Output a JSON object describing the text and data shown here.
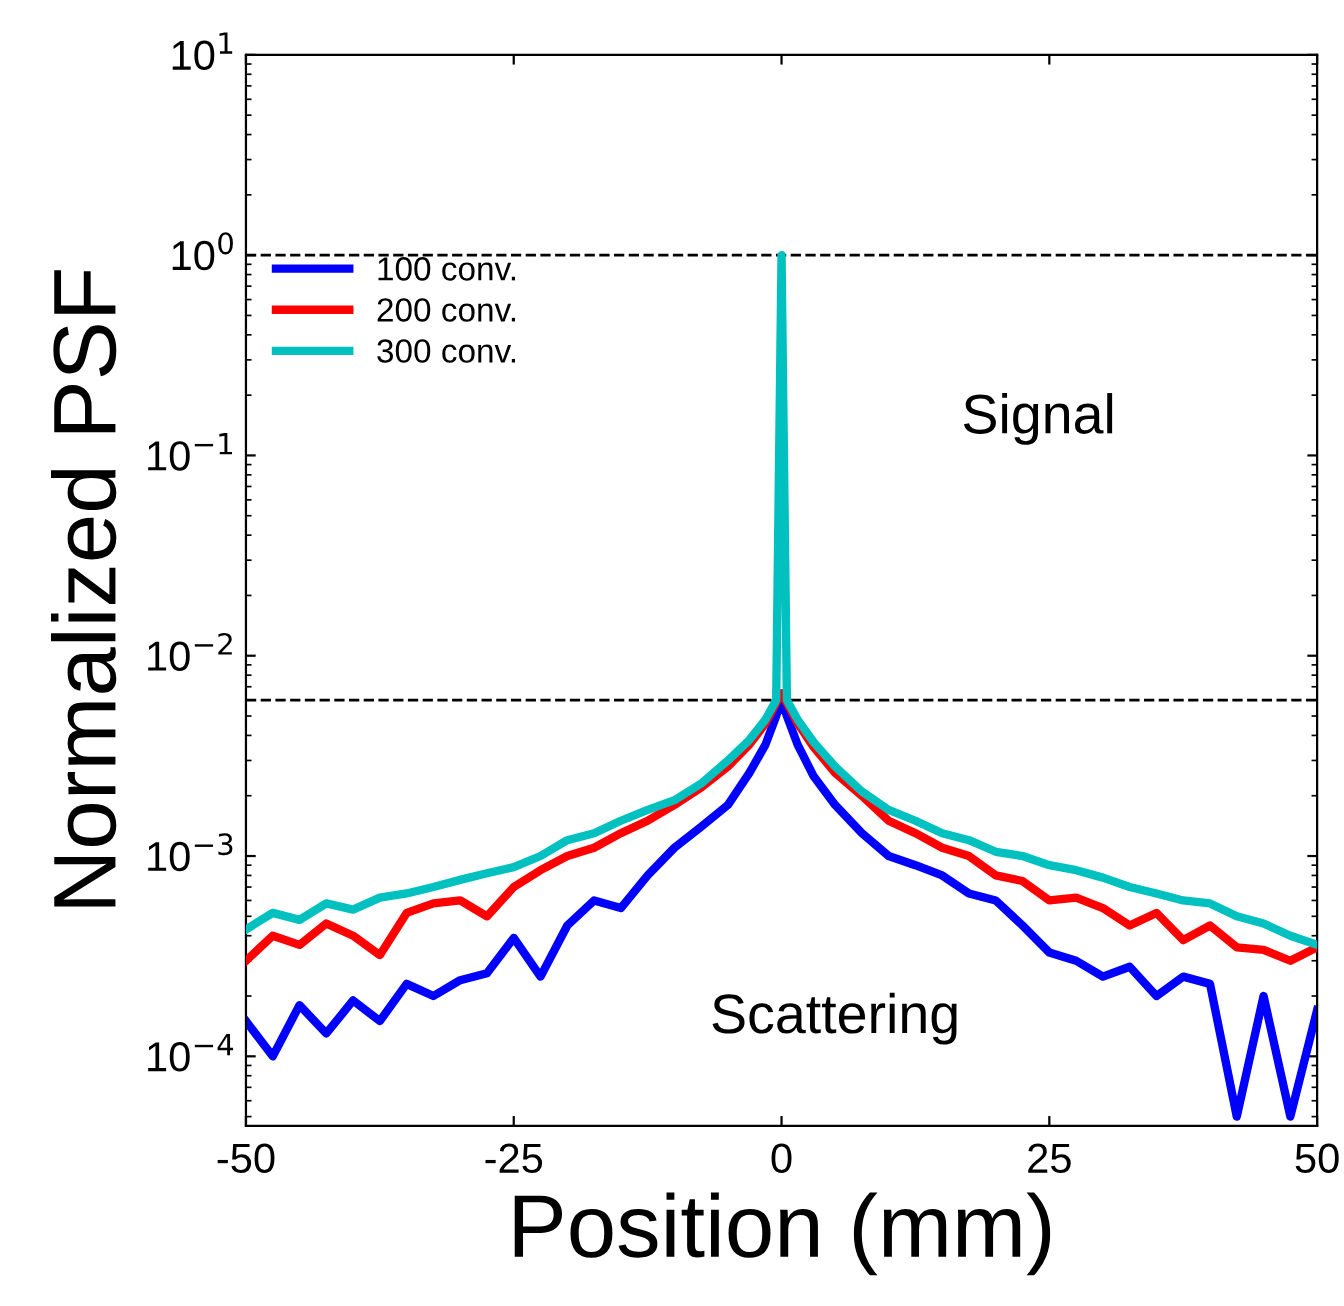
{
  "chart_data": {
    "type": "line",
    "xlabel": "Position (mm)",
    "ylabel": "Normalized PSF",
    "log": "y",
    "xlim": [
      -50,
      50
    ],
    "xticks": [
      -50,
      -25,
      0,
      25,
      50
    ],
    "ylim": [
      4.5e-05,
      10
    ],
    "yticks": [
      {
        "value": 0.0001,
        "label": "10$^{−4}$"
      },
      {
        "value": 0.001,
        "label": "10$^{−3}$"
      },
      {
        "value": 0.01,
        "label": "10$^{−2}$"
      },
      {
        "value": 0.1,
        "label": "10$^{−1}$"
      },
      {
        "value": 1,
        "label": "10$^{0}$"
      },
      {
        "value": 10,
        "label": "10$^{1}$"
      }
    ],
    "grid": false,
    "legend": "top left",
    "line_style": "solid",
    "marker": "none",
    "ref_lines": [
      {
        "axis": "y",
        "value": 1,
        "line_style": "dashed",
        "color": "#000000"
      },
      {
        "axis": "y",
        "value": 0.006,
        "line_style": "dashed",
        "color": "#000000"
      }
    ],
    "annotations": [
      "Signal",
      "Scattering"
    ],
    "x": [
      -50,
      -47.5,
      -45,
      -42.5,
      -40,
      -37.5,
      -35,
      -32.5,
      -30,
      -27.5,
      -25,
      -22.5,
      -20,
      -17.5,
      -15,
      -12.5,
      -10,
      -7.5,
      -5,
      -3,
      -1.5,
      -0.5,
      0,
      0.5,
      1.5,
      3,
      5,
      7.5,
      10,
      12.5,
      15,
      17.5,
      20,
      22.5,
      25,
      27.5,
      30,
      32.5,
      35,
      37.5,
      40,
      42.5,
      45,
      47.5,
      50
    ],
    "series": [
      {
        "name": "100 conv.",
        "color": "#0000ff",
        "values": [
          0.00015,
          0.0001,
          0.00018,
          0.00013,
          0.00019,
          0.00015,
          0.00023,
          0.0002,
          0.00024,
          0.00026,
          0.00039,
          0.00025,
          0.00045,
          0.0006,
          0.00055,
          0.0008,
          0.0011,
          0.0014,
          0.0018,
          0.0026,
          0.0036,
          0.005,
          0.006,
          0.005,
          0.0036,
          0.0025,
          0.0018,
          0.0013,
          0.001,
          0.0009,
          0.0008,
          0.00065,
          0.0006,
          0.00045,
          0.00033,
          0.0003,
          0.00025,
          0.00028,
          0.0002,
          0.00025,
          0.00023,
          5e-05,
          0.0002,
          5e-05,
          0.00017
        ]
      },
      {
        "name": "200 conv.",
        "color": "#ff0000",
        "values": [
          0.0003,
          0.0004,
          0.00036,
          0.00046,
          0.0004,
          0.00032,
          0.00052,
          0.00058,
          0.0006,
          0.0005,
          0.0007,
          0.00085,
          0.001,
          0.0011,
          0.0013,
          0.0015,
          0.0018,
          0.0022,
          0.0028,
          0.0036,
          0.0046,
          0.0058,
          0.0065,
          0.0058,
          0.0046,
          0.0035,
          0.0026,
          0.002,
          0.0015,
          0.0013,
          0.0011,
          0.001,
          0.0008,
          0.00075,
          0.0006,
          0.00062,
          0.00055,
          0.00045,
          0.00052,
          0.00038,
          0.00045,
          0.00035,
          0.00034,
          0.0003,
          0.00035
        ]
      },
      {
        "name": "300 conv.",
        "color": "#00c0c0",
        "values": [
          0.00043,
          0.00052,
          0.00048,
          0.00058,
          0.00054,
          0.00062,
          0.00065,
          0.0007,
          0.00076,
          0.00082,
          0.00088,
          0.001,
          0.0012,
          0.0013,
          0.0015,
          0.0017,
          0.0019,
          0.0023,
          0.003,
          0.0038,
          0.0048,
          0.006,
          1.0,
          0.006,
          0.0048,
          0.0037,
          0.0028,
          0.0021,
          0.0017,
          0.0015,
          0.0013,
          0.0012,
          0.00105,
          0.001,
          0.0009,
          0.00085,
          0.00078,
          0.0007,
          0.00065,
          0.0006,
          0.00058,
          0.0005,
          0.00046,
          0.0004,
          0.00036
        ]
      }
    ]
  }
}
